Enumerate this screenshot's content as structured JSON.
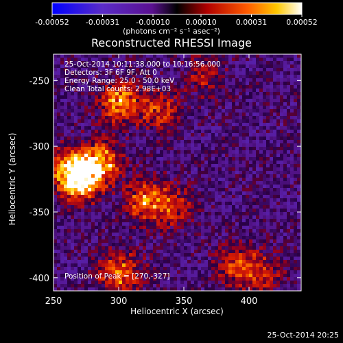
{
  "title": "Reconstructed RHESSI Image",
  "colorbar": {
    "ticks": [
      "-0.00052",
      "-0.00031",
      "-0.00010",
      "0.00010",
      "0.00031",
      "0.00052"
    ],
    "unit_label": "(photons cm⁻² s⁻¹ asec⁻²)"
  },
  "annotations": {
    "time_range": "25-Oct-2014 10:11:38.000 to 10:16:56.000",
    "detectors": "Detectors: 3F 6F 9F, Att 0",
    "energy": "Energy Range: 25.0 - 50.0 keV",
    "clean": "Clean     Total counts: 2.98E+03",
    "peak": "Position of Peak = [270,-327]"
  },
  "footer": "25-Oct-2014 20:25",
  "chart_data": {
    "type": "heatmap",
    "title": "Reconstructed RHESSI Image",
    "xlabel": "Heliocentric X (arcsec)",
    "ylabel": "Heliocentric Y (arcsec)",
    "xlim": [
      250,
      440
    ],
    "ylim": [
      -410,
      -230
    ],
    "xticks": [
      "250",
      "300",
      "350",
      "400"
    ],
    "yticks": [
      "-250",
      "-300",
      "-350",
      "-400"
    ],
    "color_scale": {
      "min": -0.00052,
      "max": 0.00052,
      "colors": [
        "#0000ff",
        "#6a2aa8",
        "#3a0066",
        "#000000",
        "#aa0000",
        "#ff6600",
        "#ffcc00",
        "#ffffff"
      ]
    },
    "peak_position": [
      270,
      -327
    ],
    "sources": [
      {
        "x": 270,
        "y": -325,
        "peak": 1.0
      },
      {
        "x": 285,
        "y": -310,
        "peak": 0.8
      },
      {
        "x": 260,
        "y": -315,
        "peak": 0.7
      },
      {
        "x": 300,
        "y": -265,
        "peak": 0.8
      },
      {
        "x": 330,
        "y": -272,
        "peak": 0.5
      },
      {
        "x": 320,
        "y": -340,
        "peak": 0.7
      },
      {
        "x": 340,
        "y": -345,
        "peak": 0.45
      },
      {
        "x": 300,
        "y": -395,
        "peak": 0.75
      },
      {
        "x": 390,
        "y": -390,
        "peak": 0.55
      },
      {
        "x": 365,
        "y": -245,
        "peak": 0.35
      },
      {
        "x": 410,
        "y": -395,
        "peak": 0.4
      }
    ]
  }
}
